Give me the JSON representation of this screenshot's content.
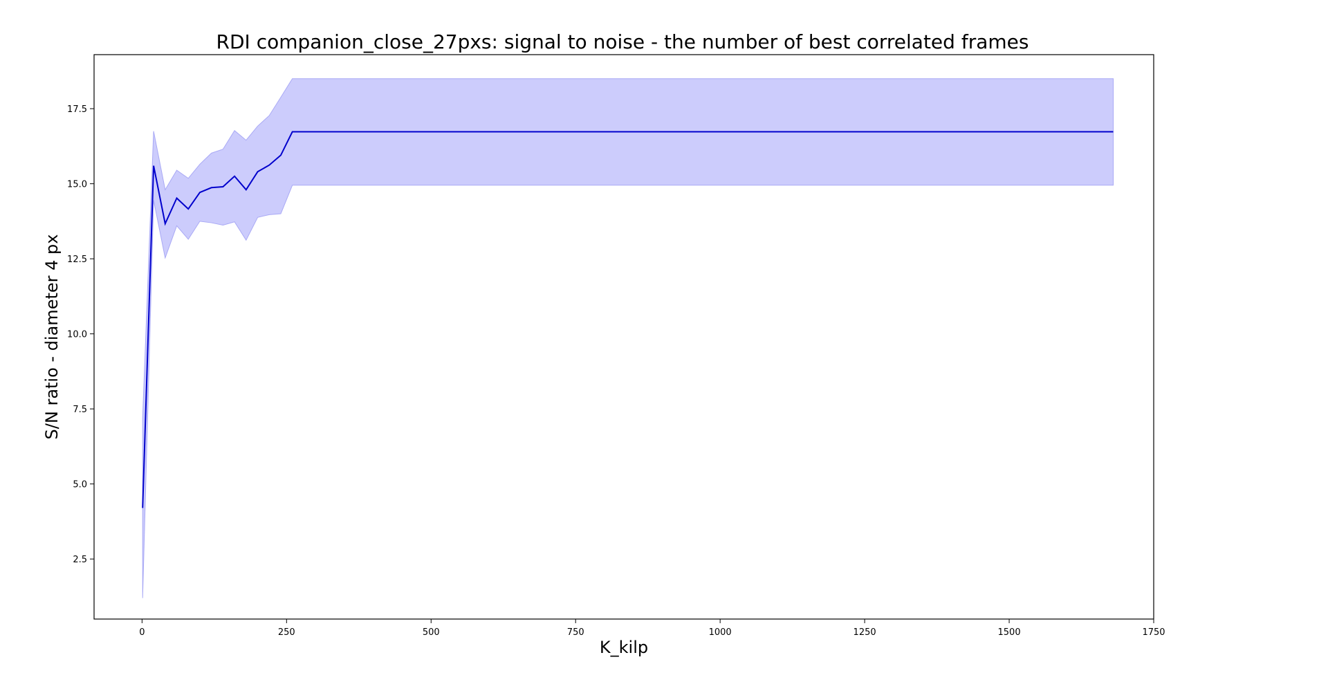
{
  "chart_data": {
    "type": "line",
    "title": "RDI companion_close_27pxs: signal to noise - the number of best correlated frames",
    "xlabel": "K_kilp",
    "ylabel": "S/N ratio - diameter 4 px",
    "xlim": [
      -83,
      1750
    ],
    "ylim": [
      0.5,
      19.3
    ],
    "x_ticks": [
      0,
      250,
      500,
      750,
      1000,
      1250,
      1500,
      1750
    ],
    "y_ticks": [
      2.5,
      5.0,
      7.5,
      10.0,
      12.5,
      15.0,
      17.5
    ],
    "x_tick_labels": [
      "0",
      "250",
      "500",
      "750",
      "1000",
      "1250",
      "1500",
      "1750"
    ],
    "y_tick_labels": [
      "2.5",
      "5.0",
      "7.5",
      "10.0",
      "12.5",
      "15.0",
      "17.5"
    ],
    "grid": false,
    "colors": {
      "line": "#0000cc",
      "band_fill": "#ccccfc",
      "band_edge": "#a9a9f5"
    },
    "series": [
      {
        "x": [
          1,
          20,
          40,
          60,
          80,
          100,
          120,
          140,
          160,
          180,
          200,
          220,
          240,
          260,
          1680
        ],
        "y": [
          4.2,
          15.6,
          13.67,
          14.52,
          14.16,
          14.71,
          14.87,
          14.9,
          15.25,
          14.8,
          15.4,
          15.62,
          15.95,
          16.73,
          16.73
        ],
        "band_upper": [
          7.2,
          16.75,
          14.8,
          15.45,
          15.18,
          15.65,
          16.02,
          16.15,
          16.77,
          16.45,
          16.92,
          17.27,
          17.88,
          18.5,
          18.5
        ],
        "band_lower": [
          1.2,
          14.45,
          12.53,
          13.6,
          13.15,
          13.75,
          13.7,
          13.62,
          13.73,
          13.12,
          13.88,
          13.97,
          14.0,
          14.95,
          14.95
        ]
      }
    ]
  }
}
